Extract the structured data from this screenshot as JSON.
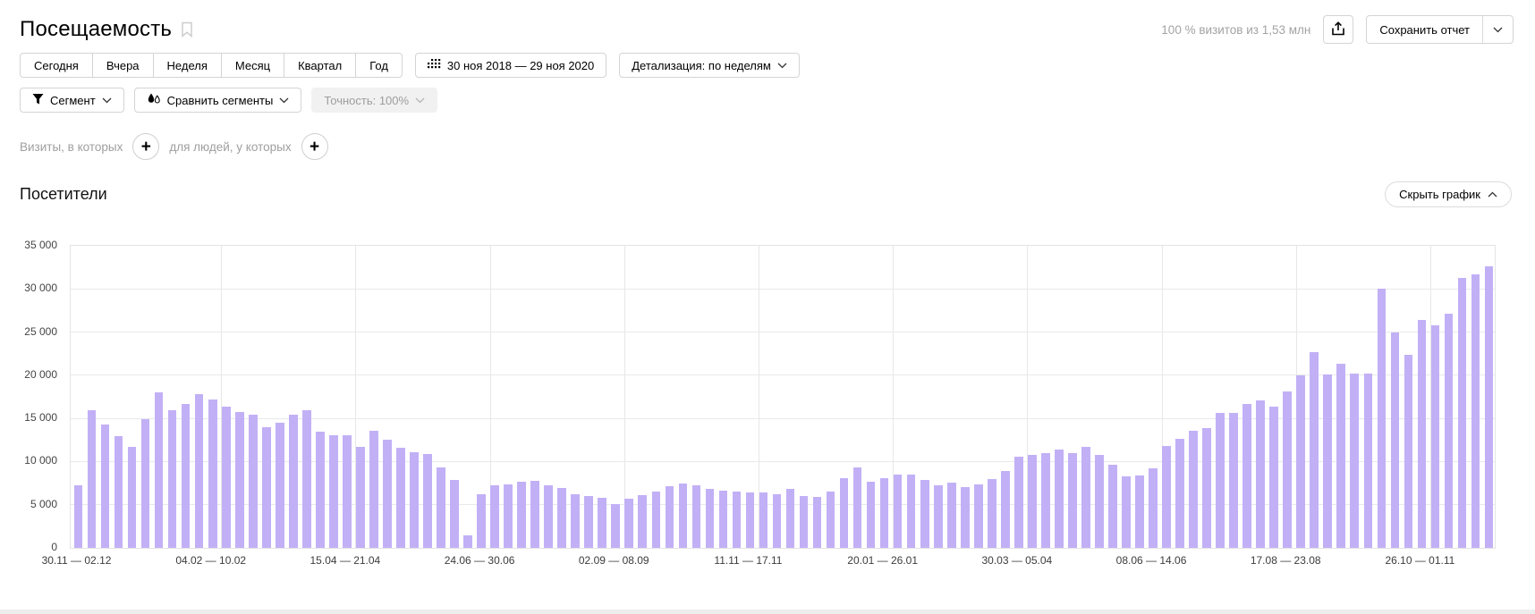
{
  "header": {
    "title": "Посещаемость",
    "visits_summary": "100 % визитов из 1,53 млн",
    "save_report_label": "Сохранить отчет"
  },
  "toolbar": {
    "period_tabs": [
      "Сегодня",
      "Вчера",
      "Неделя",
      "Месяц",
      "Квартал",
      "Год"
    ],
    "date_range": "30 ноя 2018 — 29 ноя 2020",
    "detalization_label": "Детализация: по неделям",
    "segment_label": "Сегмент",
    "compare_segments_label": "Сравнить сегменты",
    "accuracy_label": "Точность: 100%"
  },
  "filters": {
    "visits_label": "Визиты, в которых",
    "people_label": "для людей, у которых"
  },
  "chart_section": {
    "title": "Посетители",
    "hide_chart_label": "Скрыть график"
  },
  "icons": {
    "title_bookmark": "bookmark-icon",
    "share": "upload-icon",
    "save_dropdown": "chevron-down-icon",
    "date_range": "calendar-grid-icon",
    "detalization": "chevron-down-icon",
    "segment": "funnel-icon",
    "compare_segments": "droplets-icon",
    "hide_chart": "chevron-up-icon",
    "add_filter": "plus-icon"
  },
  "chart_data": {
    "type": "bar",
    "title": "Посетители",
    "xlabel": "",
    "ylabel": "",
    "ylim": [
      0,
      35000
    ],
    "ytick_step": 5000,
    "ytick_labels": [
      "0",
      "5 000",
      "10 000",
      "15 000",
      "20 000",
      "25 000",
      "30 000",
      "35 000"
    ],
    "bar_color": "#c2b0f6",
    "grid": true,
    "legend": "none",
    "x_axis_labels": [
      {
        "index": 0,
        "label": "30.11 — 02.12"
      },
      {
        "index": 10,
        "label": "04.02 — 10.02"
      },
      {
        "index": 20,
        "label": "15.04 — 21.04"
      },
      {
        "index": 30,
        "label": "24.06 — 30.06"
      },
      {
        "index": 40,
        "label": "02.09 — 08.09"
      },
      {
        "index": 50,
        "label": "11.11 — 17.11"
      },
      {
        "index": 60,
        "label": "20.01 — 26.01"
      },
      {
        "index": 70,
        "label": "30.03 — 05.04"
      },
      {
        "index": 80,
        "label": "08.06 — 14.06"
      },
      {
        "index": 90,
        "label": "17.08 — 23.08"
      },
      {
        "index": 100,
        "label": "26.10 — 01.11"
      }
    ],
    "values": [
      7300,
      16000,
      14300,
      12900,
      11700,
      14900,
      18000,
      15900,
      16700,
      17800,
      17200,
      16400,
      15700,
      15400,
      14000,
      14500,
      15400,
      15900,
      13500,
      13100,
      13000,
      11700,
      13600,
      12500,
      11600,
      11100,
      10900,
      9300,
      7900,
      1400,
      6200,
      7200,
      7400,
      7700,
      7800,
      7200,
      6900,
      6200,
      6000,
      5800,
      5100,
      5700,
      6100,
      6500,
      7100,
      7500,
      7200,
      6800,
      6600,
      6500,
      6400,
      6400,
      6200,
      6800,
      6000,
      5900,
      6500,
      8100,
      9300,
      7700,
      8100,
      8500,
      8500,
      7900,
      7300,
      7600,
      7000,
      7400,
      8000,
      8900,
      10600,
      10800,
      11000,
      11400,
      11000,
      11700,
      10800,
      9600,
      8300,
      8400,
      9200,
      11800,
      12600,
      13600,
      13900,
      15600,
      15600,
      16700,
      17100,
      16400,
      18100,
      20000,
      22700,
      20100,
      21300,
      20200,
      20200,
      30000,
      25000,
      22400,
      26400,
      25800,
      27100,
      31300,
      31700,
      32600
    ]
  }
}
